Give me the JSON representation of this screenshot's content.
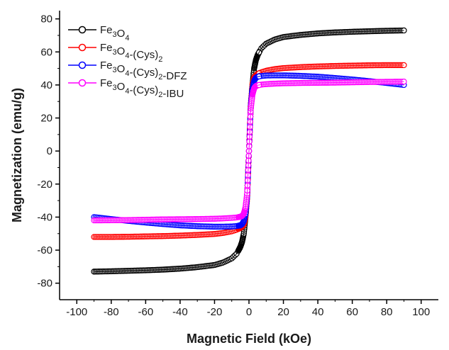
{
  "chart_data": {
    "type": "scatter",
    "title": "",
    "xlabel": "Magnetic Field (kOe)",
    "ylabel": "Magnetization (emu/g)",
    "xlim": [
      -110,
      110
    ],
    "ylim": [
      -90,
      85
    ],
    "xticks": [
      -100,
      -80,
      -60,
      -40,
      -20,
      0,
      20,
      40,
      60,
      80,
      100
    ],
    "yticks": [
      -80,
      -60,
      -40,
      -20,
      0,
      20,
      40,
      60,
      80
    ],
    "grid": false,
    "legend_position": "top-left",
    "marker": "open-circle",
    "series": [
      {
        "key": "fe3o4",
        "name": "Fe3O4",
        "color": "#000000",
        "x": [
          -90,
          -80,
          -70,
          -60,
          -50,
          -40,
          -30,
          -20,
          -15,
          -10,
          -7,
          -5,
          -4,
          -3,
          -2,
          -1,
          -0.5,
          0,
          0.5,
          1,
          2,
          3,
          4,
          5,
          7,
          10,
          15,
          20,
          30,
          40,
          50,
          60,
          70,
          80,
          90
        ],
        "y": [
          -73,
          -72.8,
          -72.5,
          -72.2,
          -71.8,
          -71.2,
          -70.3,
          -69,
          -67.5,
          -65,
          -62,
          -58,
          -55,
          -50,
          -40,
          -25,
          -12,
          0,
          12,
          25,
          40,
          50,
          55,
          58,
          62,
          65,
          67.5,
          69,
          70.3,
          71.2,
          71.8,
          72.2,
          72.5,
          72.8,
          73
        ]
      },
      {
        "key": "cys",
        "name": "Fe3O4-(Cys)2",
        "color": "#ff0000",
        "x": [
          -90,
          -80,
          -70,
          -60,
          -50,
          -40,
          -30,
          -20,
          -15,
          -10,
          -7,
          -5,
          -4,
          -3,
          -2,
          -1,
          -0.5,
          0,
          0.5,
          1,
          2,
          3,
          4,
          5,
          7,
          10,
          15,
          20,
          30,
          40,
          50,
          60,
          70,
          80,
          90
        ],
        "y": [
          -52,
          -52,
          -51.9,
          -51.7,
          -51.5,
          -51.2,
          -50.8,
          -50.2,
          -49.6,
          -48.6,
          -47.6,
          -46.6,
          -45.8,
          -44.5,
          -40,
          -28,
          -14,
          0,
          14,
          28,
          40,
          44.5,
          45.8,
          46.6,
          47.6,
          48.6,
          49.6,
          50.2,
          50.8,
          51.2,
          51.5,
          51.7,
          51.9,
          52,
          52
        ]
      },
      {
        "key": "dfz",
        "name": "Fe3O4-(Cys)2-DFZ",
        "color": "#0000ff",
        "x": [
          -90,
          -80,
          -70,
          -60,
          -50,
          -40,
          -30,
          -20,
          -15,
          -10,
          -7,
          -5,
          -4,
          -3,
          -2,
          -1,
          -0.5,
          0,
          0.5,
          1,
          2,
          3,
          4,
          5,
          7,
          10,
          15,
          20,
          30,
          40,
          50,
          60,
          70,
          80,
          90
        ],
        "y": [
          -40,
          -41.2,
          -42.3,
          -43.3,
          -44.2,
          -45,
          -45.5,
          -45.8,
          -45.8,
          -45.7,
          -45.4,
          -45,
          -44.3,
          -42.5,
          -38,
          -27,
          -13,
          0,
          13,
          27,
          38,
          42.5,
          44.3,
          45,
          45.4,
          45.7,
          45.8,
          45.8,
          45.5,
          45,
          44.2,
          43.3,
          42.3,
          41.2,
          40
        ]
      },
      {
        "key": "ibu",
        "name": "Fe3O4-(Cys)2-IBU",
        "color": "#ff00ff",
        "x": [
          -90,
          -80,
          -70,
          -60,
          -50,
          -40,
          -30,
          -20,
          -15,
          -10,
          -7,
          -5,
          -4,
          -3,
          -2,
          -1,
          -0.5,
          0,
          0.5,
          1,
          2,
          3,
          4,
          5,
          7,
          10,
          15,
          20,
          30,
          40,
          50,
          60,
          70,
          80,
          90
        ],
        "y": [
          -42,
          -41.9,
          -41.8,
          -41.6,
          -41.4,
          -41.3,
          -41.2,
          -41,
          -40.8,
          -40.5,
          -40.2,
          -39.8,
          -39.3,
          -38,
          -34,
          -25,
          -12,
          0,
          12,
          25,
          34,
          38,
          39.3,
          39.8,
          40.2,
          40.5,
          40.8,
          41,
          41.2,
          41.3,
          41.4,
          41.6,
          41.8,
          41.9,
          42
        ]
      }
    ]
  }
}
